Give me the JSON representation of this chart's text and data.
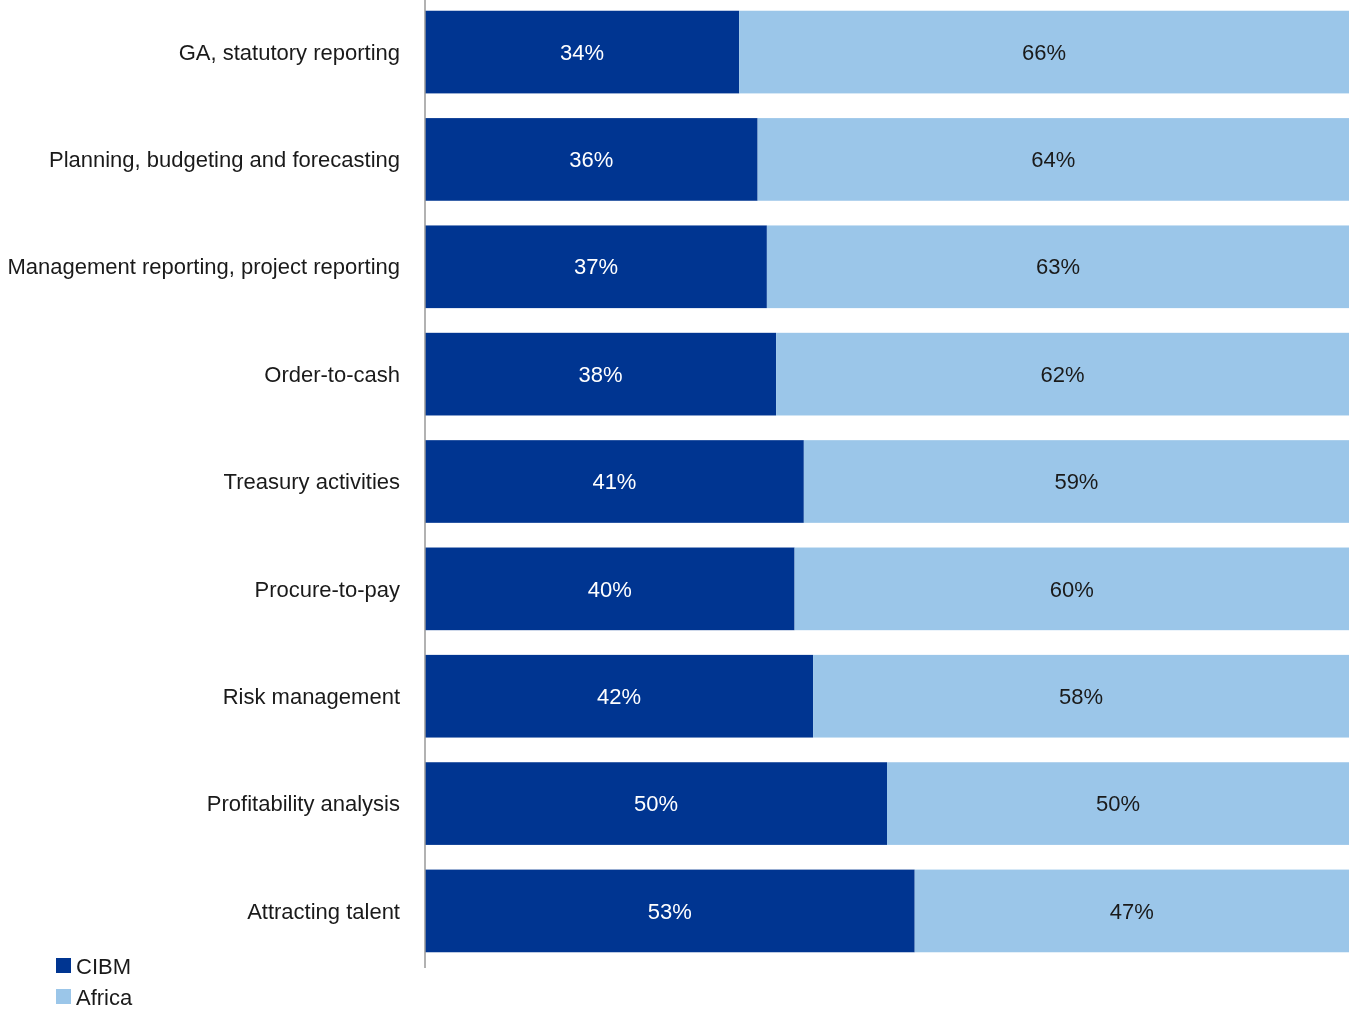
{
  "chart_data": {
    "type": "bar",
    "orientation": "horizontal",
    "stacked": true,
    "legend": "bottom left",
    "tick_labels": "y",
    "categories": [
      "GA, statutory reporting",
      "Planning, budgeting and forecasting",
      "Management reporting, project reporting",
      "Order-to-cash",
      "Treasury activities",
      "Procure-to-pay",
      "Risk management",
      "Profitability analysis",
      "Attracting talent"
    ],
    "xlim": [
      0,
      100
    ],
    "series": [
      {
        "name": "CIBM",
        "color": "#003591",
        "values": [
          34,
          36,
          37,
          38,
          41,
          40,
          42,
          50,
          53
        ],
        "value_labels": [
          "34%",
          "36%",
          "37%",
          "38%",
          "41%",
          "40%",
          "42%",
          "50%",
          "53%"
        ]
      },
      {
        "name": "Africa",
        "color": "#9bc6e9",
        "values": [
          66,
          64,
          63,
          62,
          59,
          60,
          58,
          50,
          47
        ],
        "value_labels": [
          "66%",
          "64%",
          "63%",
          "62%",
          "59%",
          "60%",
          "58%",
          "50%",
          "47%"
        ]
      }
    ]
  }
}
